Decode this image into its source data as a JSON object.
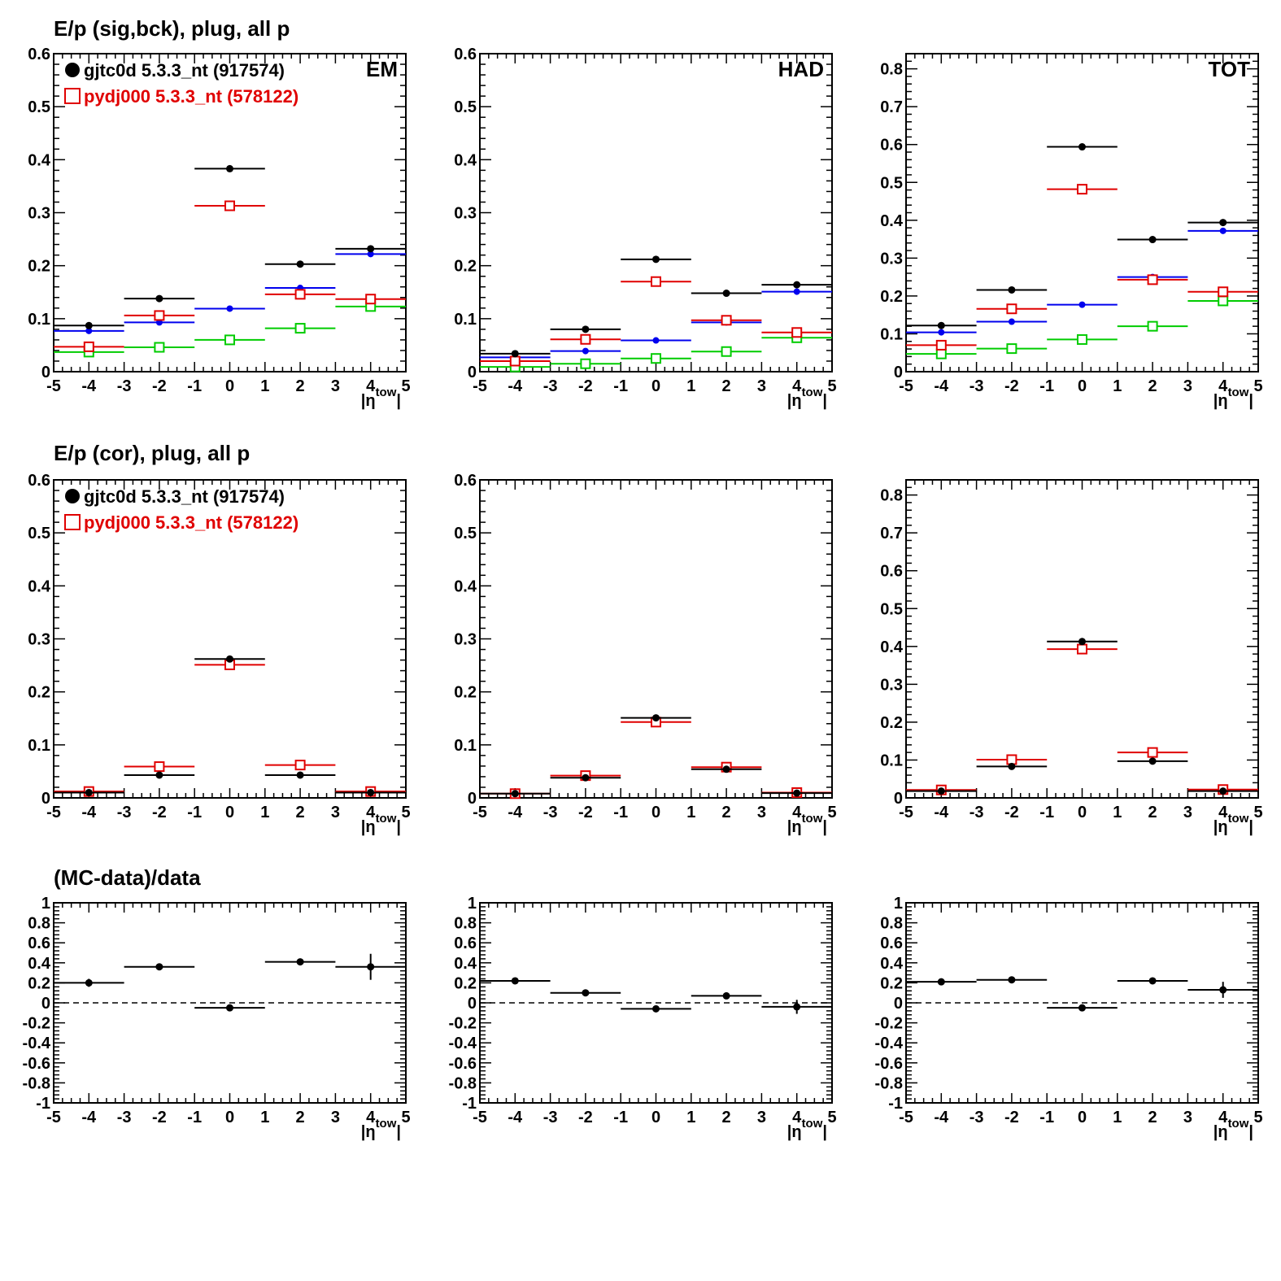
{
  "figure": {
    "row_titles": [
      "E/p (sig,bck), plug, all p",
      "E/p (cor), plug, all p",
      "(MC-data)/data"
    ],
    "xlabel_main": "|η",
    "xlabel_sup": "tow",
    "xlabel_end": "|",
    "legend": [
      {
        "name": "gjtc0d 5.3.3_nt (917574)",
        "marker": "filled-circle",
        "color": "#000000"
      },
      {
        "name": "pydj000 5.3.3_nt (578122)",
        "marker": "open-square",
        "color": "#e00000"
      }
    ]
  },
  "colors": {
    "data": "#000000",
    "mc": "#e00000",
    "blue": "#0000ee",
    "green": "#00cc00"
  },
  "chart_data": [
    {
      "type": "scatter",
      "row": 0,
      "col": 0,
      "label": "EM",
      "legend": true,
      "xlim": [
        -5,
        5
      ],
      "ylim": [
        0,
        0.6
      ],
      "yticks": [
        0,
        0.1,
        0.2,
        0.3,
        0.4,
        0.5,
        0.6
      ],
      "ytick_labels": [
        "0",
        "0.1",
        "0.2",
        "0.3",
        "0.4",
        "0.5",
        "0.6"
      ],
      "x": [
        -4,
        -2,
        0,
        2,
        4
      ],
      "xerr": 1,
      "series": [
        {
          "marker": "filled-circle",
          "color": "#000000",
          "values": [
            0.087,
            0.138,
            0.383,
            0.203,
            0.232
          ]
        },
        {
          "marker": "open-square",
          "color": "#e00000",
          "values": [
            0.047,
            0.106,
            0.313,
            0.146,
            0.137
          ]
        },
        {
          "marker": "small-circle",
          "color": "#0000ee",
          "values": [
            0.077,
            0.093,
            0.119,
            0.158,
            0.222
          ]
        },
        {
          "marker": "open-square",
          "color": "#00cc00",
          "values": [
            0.037,
            0.046,
            0.06,
            0.082,
            0.123
          ]
        }
      ]
    },
    {
      "type": "scatter",
      "row": 0,
      "col": 1,
      "label": "HAD",
      "legend": false,
      "xlim": [
        -5,
        5
      ],
      "ylim": [
        0,
        0.6
      ],
      "yticks": [
        0,
        0.1,
        0.2,
        0.3,
        0.4,
        0.5,
        0.6
      ],
      "ytick_labels": [
        "0",
        "0.1",
        "0.2",
        "0.3",
        "0.4",
        "0.5",
        "0.6"
      ],
      "x": [
        -4,
        -2,
        0,
        2,
        4
      ],
      "xerr": 1,
      "series": [
        {
          "marker": "filled-circle",
          "color": "#000000",
          "values": [
            0.034,
            0.08,
            0.212,
            0.148,
            0.164
          ]
        },
        {
          "marker": "open-square",
          "color": "#e00000",
          "values": [
            0.02,
            0.061,
            0.17,
            0.097,
            0.074
          ]
        },
        {
          "marker": "small-circle",
          "color": "#0000ee",
          "values": [
            0.027,
            0.039,
            0.059,
            0.093,
            0.151
          ]
        },
        {
          "marker": "open-square",
          "color": "#00cc00",
          "values": [
            0.009,
            0.015,
            0.025,
            0.038,
            0.064
          ]
        }
      ]
    },
    {
      "type": "scatter",
      "row": 0,
      "col": 2,
      "label": "TOT",
      "legend": false,
      "xlim": [
        -5,
        5
      ],
      "ylim": [
        0,
        0.84
      ],
      "yticks": [
        0,
        0.1,
        0.2,
        0.3,
        0.4,
        0.5,
        0.6,
        0.7,
        0.8
      ],
      "ytick_labels": [
        "0",
        "0.1",
        "0.2",
        "0.3",
        "0.4",
        "0.5",
        "0.6",
        "0.7",
        "0.8"
      ],
      "x": [
        -4,
        -2,
        0,
        2,
        4
      ],
      "xerr": 1,
      "series": [
        {
          "marker": "filled-circle",
          "color": "#000000",
          "values": [
            0.122,
            0.216,
            0.594,
            0.349,
            0.394
          ]
        },
        {
          "marker": "open-square",
          "color": "#e00000",
          "values": [
            0.07,
            0.166,
            0.482,
            0.243,
            0.211
          ]
        },
        {
          "marker": "small-circle",
          "color": "#0000ee",
          "values": [
            0.104,
            0.132,
            0.177,
            0.25,
            0.372
          ]
        },
        {
          "marker": "open-square",
          "color": "#00cc00",
          "values": [
            0.047,
            0.061,
            0.085,
            0.12,
            0.187
          ]
        }
      ]
    },
    {
      "type": "scatter",
      "row": 1,
      "col": 0,
      "label": "",
      "legend": true,
      "xlim": [
        -5,
        5
      ],
      "ylim": [
        0,
        0.6
      ],
      "yticks": [
        0,
        0.1,
        0.2,
        0.3,
        0.4,
        0.5,
        0.6
      ],
      "ytick_labels": [
        "0",
        "0.1",
        "0.2",
        "0.3",
        "0.4",
        "0.5",
        "0.6"
      ],
      "x": [
        -4,
        -2,
        0,
        2,
        4
      ],
      "xerr": 1,
      "series": [
        {
          "marker": "filled-circle",
          "color": "#000000",
          "values": [
            0.01,
            0.043,
            0.262,
            0.043,
            0.01
          ]
        },
        {
          "marker": "open-square",
          "color": "#e00000",
          "values": [
            0.012,
            0.059,
            0.251,
            0.062,
            0.012
          ]
        }
      ]
    },
    {
      "type": "scatter",
      "row": 1,
      "col": 1,
      "label": "",
      "legend": false,
      "xlim": [
        -5,
        5
      ],
      "ylim": [
        0,
        0.6
      ],
      "yticks": [
        0,
        0.1,
        0.2,
        0.3,
        0.4,
        0.5,
        0.6
      ],
      "ytick_labels": [
        "0",
        "0.1",
        "0.2",
        "0.3",
        "0.4",
        "0.5",
        "0.6"
      ],
      "x": [
        -4,
        -2,
        0,
        2,
        4
      ],
      "xerr": 1,
      "series": [
        {
          "marker": "filled-circle",
          "color": "#000000",
          "values": [
            0.008,
            0.038,
            0.151,
            0.054,
            0.009
          ]
        },
        {
          "marker": "open-square",
          "color": "#e00000",
          "values": [
            0.008,
            0.042,
            0.143,
            0.058,
            0.01
          ]
        }
      ]
    },
    {
      "type": "scatter",
      "row": 1,
      "col": 2,
      "label": "",
      "legend": false,
      "xlim": [
        -5,
        5
      ],
      "ylim": [
        0,
        0.84
      ],
      "yticks": [
        0,
        0.1,
        0.2,
        0.3,
        0.4,
        0.5,
        0.6,
        0.7,
        0.8
      ],
      "ytick_labels": [
        "0",
        "0.1",
        "0.2",
        "0.3",
        "0.4",
        "0.5",
        "0.6",
        "0.7",
        "0.8"
      ],
      "x": [
        -4,
        -2,
        0,
        2,
        4
      ],
      "xerr": 1,
      "series": [
        {
          "marker": "filled-circle",
          "color": "#000000",
          "values": [
            0.018,
            0.083,
            0.413,
            0.097,
            0.018
          ]
        },
        {
          "marker": "open-square",
          "color": "#e00000",
          "values": [
            0.021,
            0.101,
            0.393,
            0.12,
            0.022
          ]
        }
      ]
    },
    {
      "type": "scatter",
      "row": 2,
      "col": 0,
      "label": "",
      "legend": false,
      "xlim": [
        -5,
        5
      ],
      "ylim": [
        -1,
        1
      ],
      "yticks": [
        -1,
        -0.8,
        -0.6,
        -0.4,
        -0.2,
        0,
        0.2,
        0.4,
        0.6,
        0.8,
        1
      ],
      "ytick_labels": [
        "-1",
        "-0.8",
        "-0.6",
        "-0.4",
        "-0.2",
        "0",
        "0.2",
        "0.4",
        "0.6",
        "0.8",
        "1"
      ],
      "x": [
        -4,
        -2,
        0,
        2,
        4
      ],
      "xerr": 1,
      "reference_line": 0,
      "series": [
        {
          "marker": "filled-circle",
          "color": "#000000",
          "values": [
            0.2,
            0.36,
            -0.05,
            0.41,
            0.36
          ],
          "yerr": [
            0.04,
            0.0,
            0.0,
            0.0,
            0.13
          ]
        }
      ]
    },
    {
      "type": "scatter",
      "row": 2,
      "col": 1,
      "label": "",
      "legend": false,
      "xlim": [
        -5,
        5
      ],
      "ylim": [
        -1,
        1
      ],
      "yticks": [
        -1,
        -0.8,
        -0.6,
        -0.4,
        -0.2,
        0,
        0.2,
        0.4,
        0.6,
        0.8,
        1
      ],
      "ytick_labels": [
        "-1",
        "-0.8",
        "-0.6",
        "-0.4",
        "-0.2",
        "0",
        "0.2",
        "0.4",
        "0.6",
        "0.8",
        "1"
      ],
      "x": [
        -4,
        -2,
        0,
        2,
        4
      ],
      "xerr": 1,
      "reference_line": 0,
      "series": [
        {
          "marker": "filled-circle",
          "color": "#000000",
          "values": [
            0.22,
            0.1,
            -0.06,
            0.07,
            -0.04
          ],
          "yerr": [
            0.03,
            0.0,
            0.0,
            0.0,
            0.07
          ]
        }
      ]
    },
    {
      "type": "scatter",
      "row": 2,
      "col": 2,
      "label": "",
      "legend": false,
      "xlim": [
        -5,
        5
      ],
      "ylim": [
        -1,
        1
      ],
      "yticks": [
        -1,
        -0.8,
        -0.6,
        -0.4,
        -0.2,
        0,
        0.2,
        0.4,
        0.6,
        0.8,
        1
      ],
      "ytick_labels": [
        "-1",
        "-0.8",
        "-0.6",
        "-0.4",
        "-0.2",
        "0",
        "0.2",
        "0.4",
        "0.6",
        "0.8",
        "1"
      ],
      "x": [
        -4,
        -2,
        0,
        2,
        4
      ],
      "xerr": 1,
      "reference_line": 0,
      "series": [
        {
          "marker": "filled-circle",
          "color": "#000000",
          "values": [
            0.21,
            0.23,
            -0.05,
            0.22,
            0.13
          ],
          "yerr": [
            0.0,
            0.0,
            0.0,
            0.0,
            0.08
          ]
        }
      ]
    }
  ],
  "xtick_labels": [
    "-5",
    "-4",
    "-3",
    "-2",
    "-1",
    "0",
    "1",
    "2",
    "3",
    "4",
    "5"
  ]
}
